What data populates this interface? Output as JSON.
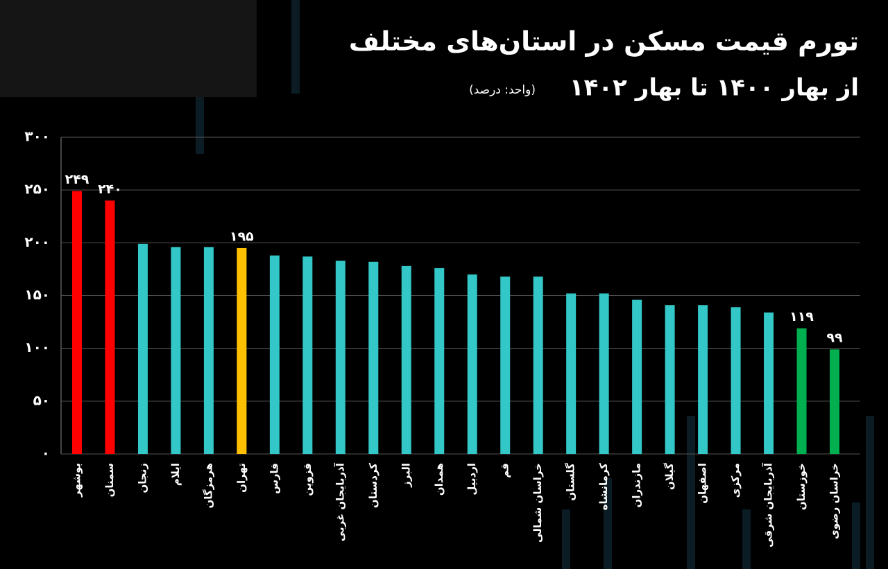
{
  "chart_data": {
    "type": "bar",
    "title": "تورم قیمت مسکن در استان‌های مختلف",
    "subtitle": "از بهار ۱۴۰۰ تا بهار ۱۴۰۲",
    "unit_note": "(واحد: درصد)",
    "categories": [
      "بوشهر",
      "سمنان",
      "زنجان",
      "ایلام",
      "هرمزگان",
      "تهران",
      "فارس",
      "قزوین",
      "آذربایجان غربی",
      "کردستان",
      "البرز",
      "همدان",
      "اردبیل",
      "قم",
      "خراسان شمالی",
      "گلستان",
      "کرمانشاه",
      "مازندران",
      "گیلان",
      "اصفهان",
      "مرکزی",
      "آذربایجان شرقی",
      "خوزستان",
      "خراسان رضوی"
    ],
    "values": [
      249,
      240,
      199,
      196,
      196,
      195,
      188,
      187,
      183,
      182,
      178,
      176,
      170,
      168,
      168,
      152,
      152,
      146,
      141,
      141,
      139,
      134,
      119,
      99
    ],
    "value_labels": [
      "۲۴۹",
      "۲۴۰",
      null,
      null,
      null,
      "۱۹۵",
      null,
      null,
      null,
      null,
      null,
      null,
      null,
      null,
      null,
      null,
      null,
      null,
      null,
      null,
      null,
      null,
      "۱۱۹",
      "۹۹"
    ],
    "colors": [
      "#ff0000",
      "#ff0000",
      "#33c7c7",
      "#33c7c7",
      "#33c7c7",
      "#ffc000",
      "#33c7c7",
      "#33c7c7",
      "#33c7c7",
      "#33c7c7",
      "#33c7c7",
      "#33c7c7",
      "#33c7c7",
      "#33c7c7",
      "#33c7c7",
      "#33c7c7",
      "#33c7c7",
      "#33c7c7",
      "#33c7c7",
      "#33c7c7",
      "#33c7c7",
      "#33c7c7",
      "#00b050",
      "#00b050"
    ],
    "ylim": [
      0,
      300
    ],
    "yticks": [
      {
        "value": 0,
        "label": "۰"
      },
      {
        "value": 50,
        "label": "۵۰"
      },
      {
        "value": 100,
        "label": "۱۰۰"
      },
      {
        "value": 150,
        "label": "۱۵۰"
      },
      {
        "value": 200,
        "label": "۲۰۰"
      },
      {
        "value": 250,
        "label": "۲۵۰"
      },
      {
        "value": 300,
        "label": "۳۰۰"
      }
    ],
    "grid": true
  }
}
